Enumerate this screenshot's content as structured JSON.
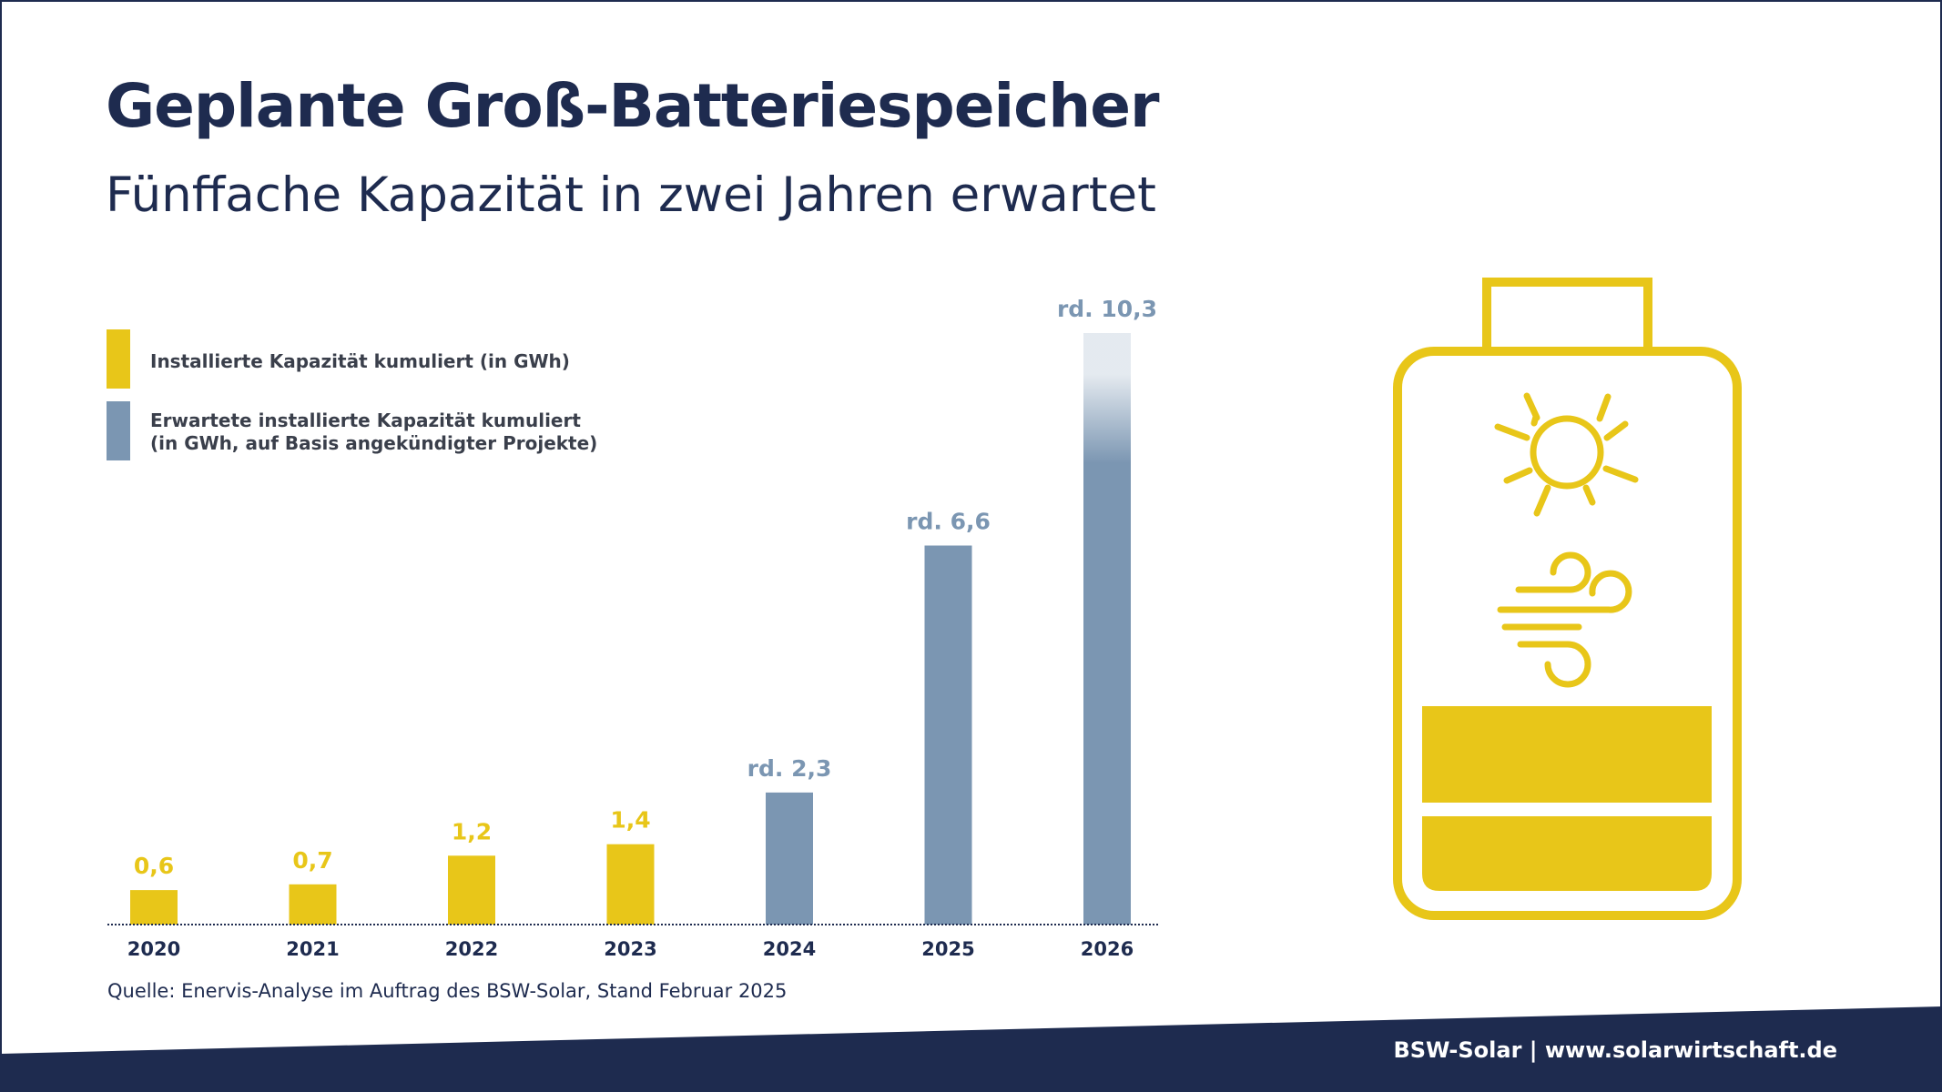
{
  "title": "Geplante Groß-Batteriespeicher",
  "subtitle": "Fünffache Kapazität in zwei Jahren erwartet",
  "legend": {
    "installed": "Installierte Kapazität kumuliert (in GWh)",
    "expected_line1": "Erwartete installierte Kapazität kumuliert",
    "expected_line2": "(in GWh, auf Basis angekündigter Projekte)"
  },
  "source": "Quelle: Enervis-Analyse im Auftrag des BSW-Solar, Stand Februar 2025",
  "footer": "BSW-Solar | www.solarwirtschaft.de",
  "colors": {
    "installed": "#e8c619",
    "expected": "#7b96b2",
    "navy": "#1e2b4f",
    "label_expected": "#7b96b2"
  },
  "icons": [
    "battery-icon",
    "sun-icon",
    "wind-icon"
  ],
  "chart_data": {
    "type": "bar",
    "title": "Geplante Groß-Batteriespeicher",
    "subtitle": "Fünffache Kapazität in zwei Jahren erwartet",
    "categories": [
      "2020",
      "2021",
      "2022",
      "2023",
      "2024",
      "2025",
      "2026"
    ],
    "values": [
      0.6,
      0.7,
      1.2,
      1.4,
      2.3,
      6.6,
      10.3
    ],
    "value_labels": [
      "0,6",
      "0,7",
      "1,2",
      "1,4",
      "rd. 2,3",
      "rd. 6,6",
      "rd. 10,3"
    ],
    "bar_kind": [
      "installed",
      "installed",
      "installed",
      "installed",
      "expected",
      "expected",
      "expected"
    ],
    "series": [
      {
        "name": "Installierte Kapazität kumuliert (in GWh)",
        "values": [
          0.6,
          0.7,
          1.2,
          1.4,
          null,
          null,
          null
        ]
      },
      {
        "name": "Erwartete installierte Kapazität kumuliert (in GWh, auf Basis angekündigter Projekte)",
        "values": [
          null,
          null,
          null,
          null,
          2.3,
          6.6,
          10.3
        ]
      }
    ],
    "xlabel": "",
    "ylabel": "",
    "ylim": [
      0,
      10.3
    ],
    "grid": false,
    "legend_position": "top-left"
  }
}
